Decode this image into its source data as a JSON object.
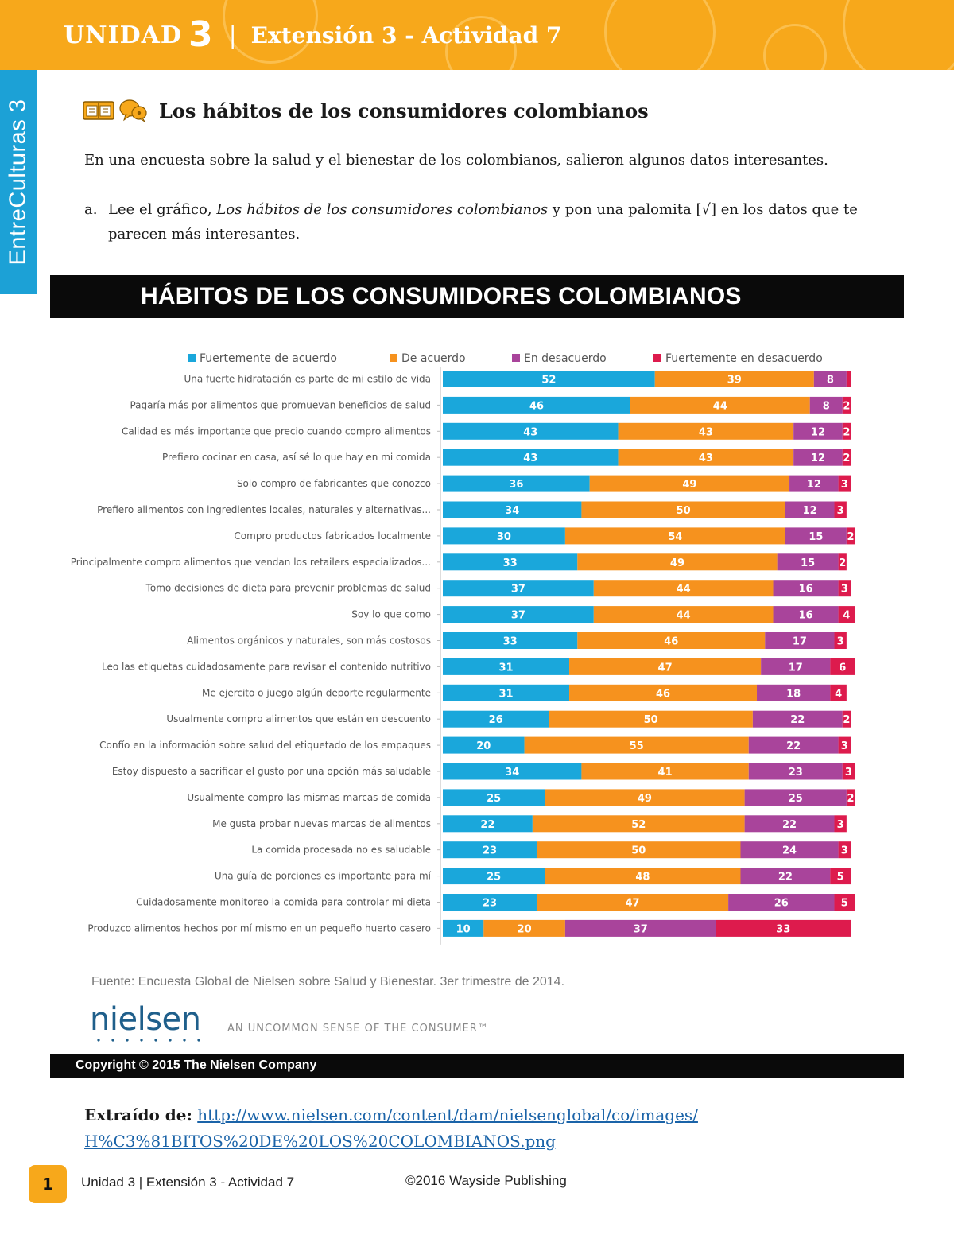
{
  "header": {
    "unit_word": "UNIDAD",
    "unit_number": "3",
    "separator": "|",
    "activity": "Extensión 3 - Actividad 7",
    "side_label": "EntreCulturas 3"
  },
  "section": {
    "title": "Los hábitos de los consumidores colombianos",
    "intro": "En una encuesta sobre la salud y el bienestar de los colombianos, salieron algunos datos interesantes.",
    "instruction_marker": "a.",
    "instruction_pre": "Lee el gráfico, ",
    "instruction_italic": "Los hábitos de los consumidores colombianos",
    "instruction_post": " y pon una palomita [√] en los datos que te parecen más interesantes."
  },
  "chart_banner": "HÁBITOS DE LOS CONSUMIDORES COLOMBIANOS",
  "chart_data": {
    "type": "bar",
    "orientation": "horizontal",
    "stacked": true,
    "title": "HÁBITOS DE LOS CONSUMIDORES COLOMBIANOS",
    "xlabel": "",
    "ylabel": "",
    "legend_position": "top",
    "categories": [
      "Una fuerte hidratación es parte de mi estilo de vida",
      "Pagaría más por alimentos que promuevan beneficios de salud",
      "Calidad es más importante que precio cuando compro alimentos",
      "Prefiero cocinar en casa, así sé lo que hay en mi comida",
      "Solo compro de fabricantes que conozco",
      "Prefiero alimentos con ingredientes locales, naturales y alternativas...",
      "Compro productos fabricados localmente",
      "Principalmente compro alimentos que vendan los retailers especializados...",
      "Tomo decisiones de dieta para prevenir problemas de salud",
      "Soy lo que como",
      "Alimentos orgánicos y naturales, son más costosos",
      "Leo las etiquetas cuidadosamente para revisar el contenido nutritivo",
      "Me ejercito o juego algún deporte regularmente",
      "Usualmente compro alimentos que están en descuento",
      "Confío en la información sobre salud del etiquetado de los empaques",
      "Estoy dispuesto a sacrificar el gusto por una opción más saludable",
      "Usualmente compro las mismas marcas de comida",
      "Me gusta probar nuevas marcas de alimentos",
      "La comida procesada no es saludable",
      "Una guía de porciones es importante para mí",
      "Cuidadosamente monitoreo la comida para controlar mi dieta",
      "Produzco alimentos hechos por mí mismo en un pequeño huerto casero"
    ],
    "series": [
      {
        "name": "Fuertemente de acuerdo",
        "color": "#1aa7db",
        "values": [
          52,
          46,
          43,
          43,
          36,
          34,
          30,
          33,
          37,
          37,
          33,
          31,
          31,
          26,
          20,
          34,
          25,
          22,
          23,
          25,
          23,
          10
        ]
      },
      {
        "name": "De acuerdo",
        "color": "#f6921e",
        "values": [
          39,
          44,
          43,
          43,
          49,
          50,
          54,
          49,
          44,
          44,
          46,
          47,
          46,
          50,
          55,
          41,
          49,
          52,
          50,
          48,
          47,
          20
        ]
      },
      {
        "name": "En desacuerdo",
        "color": "#a9449b",
        "values": [
          8,
          8,
          12,
          12,
          12,
          12,
          15,
          15,
          16,
          16,
          17,
          17,
          18,
          22,
          22,
          23,
          25,
          22,
          24,
          22,
          26,
          37
        ]
      },
      {
        "name": "Fuertemente en desacuerdo",
        "color": "#dd1b4d",
        "values": [
          1,
          2,
          2,
          2,
          3,
          3,
          2,
          2,
          3,
          4,
          3,
          6,
          4,
          2,
          3,
          3,
          2,
          3,
          3,
          5,
          5,
          33
        ]
      }
    ]
  },
  "source": "Fuente: Encuesta Global de Nielsen sobre Salud y Bienestar. 3er trimestre de 2014.",
  "logo": {
    "word": "nielsen",
    "color": "#1f5f8b"
  },
  "tagline": "AN UNCOMMON SENSE OF THE CONSUMER™",
  "copyright": "Copyright © 2015 The Nielsen Company",
  "extraction": {
    "label": "Extraído de:",
    "link_line1": "http://www.nielsen.com/content/dam/nielsenglobal/co/images/",
    "link_line2": "H%C3%81BITOS%20DE%20LOS%20COLOMBIANOS.png"
  },
  "footer": {
    "page_number": "1",
    "unit": "Unidad 3 | Extensión 3 - Actividad 7",
    "copyright": "©2016 Wayside Publishing"
  },
  "colors": {
    "header_orange": "#f7a81b",
    "side_tab_blue": "#1ca1d6",
    "banner_black": "#0a0a0a",
    "link_blue": "#1a63a8"
  }
}
